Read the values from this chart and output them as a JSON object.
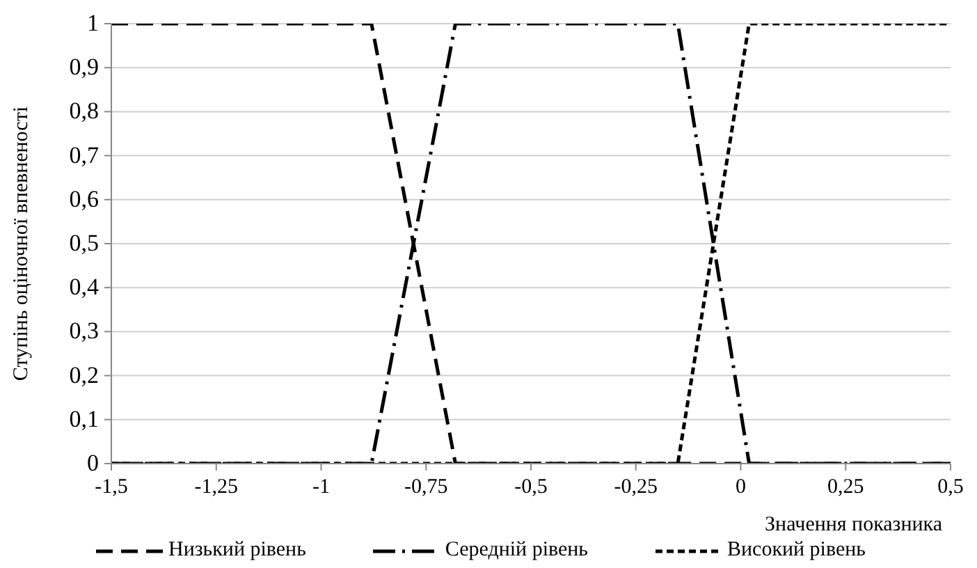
{
  "chart_data": {
    "type": "line",
    "xlabel": "Значення показника",
    "ylabel": "Ступінь оціночної впевненості",
    "xlim": [
      -1.5,
      0.5
    ],
    "xticks": [
      {
        "value": -1.5,
        "label": "-1,5"
      },
      {
        "value": -1.25,
        "label": "-1,25"
      },
      -1,
      {
        "value": -0.75,
        "label": "-0,75"
      },
      {
        "value": -0.5,
        "label": "-0,5"
      },
      {
        "value": -0.25,
        "label": "-0,25"
      },
      0,
      {
        "value": 0.25,
        "label": "0,25"
      },
      {
        "value": 0.5,
        "label": "0,5"
      }
    ],
    "ylim": [
      0,
      1
    ],
    "yticks": [
      0,
      {
        "value": 0.1,
        "label": "0,1"
      },
      {
        "value": 0.2,
        "label": "0,2"
      },
      {
        "value": 0.3,
        "label": "0,3"
      },
      {
        "value": 0.4,
        "label": "0,4"
      },
      {
        "value": 0.5,
        "label": "0,5"
      },
      {
        "value": 0.6,
        "label": "0,6"
      },
      {
        "value": 0.7,
        "label": "0,7"
      },
      {
        "value": 0.8,
        "label": "0,8"
      },
      {
        "value": 0.9,
        "label": "0,9"
      },
      1
    ],
    "grid": "y",
    "legend": "bottom",
    "marker": "none",
    "series": [
      {
        "name": "Низький рівень",
        "color": "#000000",
        "line_style": "dashed",
        "x": [
          -1.5,
          -0.88,
          -0.68,
          0.5
        ],
        "values": [
          1,
          1,
          0,
          0
        ]
      },
      {
        "name": "Середній рівень",
        "color": "#000000",
        "line_style": "dashdot",
        "x": [
          -1.5,
          -0.88,
          -0.68,
          -0.15,
          0.02,
          0.5
        ],
        "values": [
          0,
          0,
          1,
          1,
          0,
          0
        ]
      },
      {
        "name": "Високий рівень",
        "color": "#000000",
        "line_style": "dotted",
        "x": [
          -1.5,
          -0.15,
          0.02,
          0.5
        ],
        "values": [
          0,
          0,
          1,
          1
        ]
      }
    ]
  }
}
